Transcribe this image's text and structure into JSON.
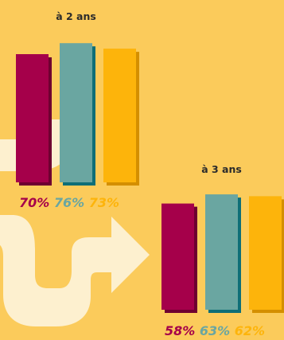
{
  "chart_data": {
    "type": "bar",
    "ylim": [
      0,
      100
    ],
    "series": [
      {
        "color": "#A5004A",
        "shadow": "#6E0030"
      },
      {
        "color": "#6AA6A1",
        "shadow": "#0E6E77"
      },
      {
        "color": "#FDB40B",
        "shadow": "#D48F00"
      }
    ],
    "groups": [
      {
        "label": "à 2 ans",
        "values": [
          70,
          76,
          73
        ],
        "value_labels": [
          "70%",
          "76%",
          "73%"
        ]
      },
      {
        "label": "à 3 ans",
        "values": [
          58,
          63,
          62
        ],
        "value_labels": [
          "58%",
          "63%",
          "62%"
        ]
      }
    ]
  },
  "colors": {
    "background": "#FBCB5B",
    "arrow": "#FDF0CF"
  }
}
